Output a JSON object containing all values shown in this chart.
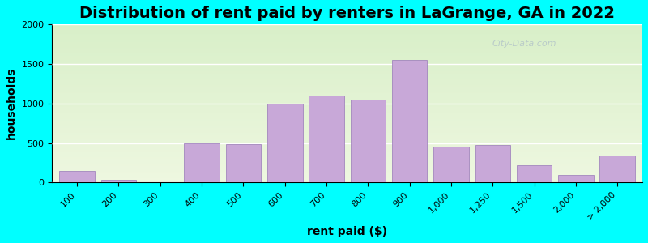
{
  "title": "Distribution of rent paid by renters in LaGrange, GA in 2022",
  "xlabel": "rent paid ($)",
  "ylabel": "households",
  "categories": [
    "100",
    "200",
    "300",
    "400",
    "500",
    "600",
    "700",
    "800",
    "900",
    "1,000",
    "1,250",
    "1,500",
    "2,000",
    "> 2,000"
  ],
  "values": [
    150,
    30,
    0,
    500,
    490,
    1000,
    1100,
    1050,
    1550,
    450,
    480,
    220,
    100,
    340
  ],
  "bar_color": "#C8A8D8",
  "bar_edge_color": "#9878B8",
  "ylim_max": 2000,
  "yticks": [
    0,
    500,
    1000,
    1500,
    2000
  ],
  "outer_background": "#00FFFF",
  "plot_bg_bottom": "#eef7e0",
  "plot_bg_top": "#d8efc8",
  "title_fontsize": 14,
  "axis_label_fontsize": 10,
  "tick_fontsize": 8,
  "watermark": "City-Data.com"
}
